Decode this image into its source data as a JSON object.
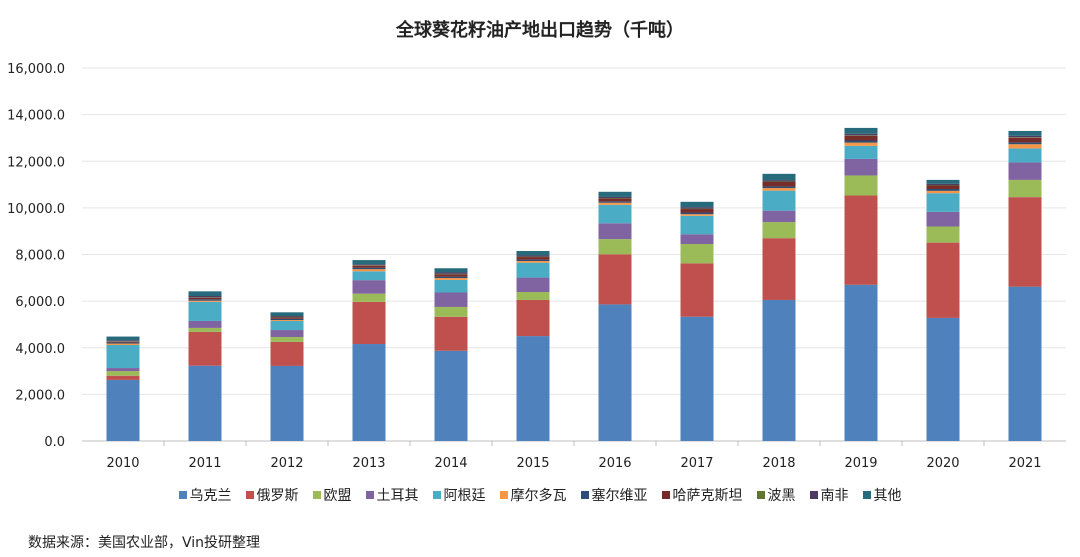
{
  "chart_data": {
    "type": "bar",
    "stacked": true,
    "title": "全球葵花籽油产地出口趋势（千吨）",
    "xlabel": "",
    "ylabel": "",
    "ylim": [
      0,
      16000
    ],
    "yticks": [
      "0.0",
      "2,000.0",
      "4,000.0",
      "6,000.0",
      "8,000.0",
      "10,000.0",
      "12,000.0",
      "14,000.0",
      "16,000.0"
    ],
    "grid": true,
    "legend_position": "bottom",
    "categories": [
      "2010",
      "2011",
      "2012",
      "2013",
      "2014",
      "2015",
      "2016",
      "2017",
      "2018",
      "2019",
      "2020",
      "2021"
    ],
    "series": [
      {
        "name": "乌克兰",
        "color": "#4F81BD",
        "values": [
          2620,
          3230,
          3220,
          4160,
          3870,
          4500,
          5860,
          5330,
          6050,
          6700,
          5280,
          6620
        ]
      },
      {
        "name": "俄罗斯",
        "color": "#C0504D",
        "values": [
          180,
          1450,
          1030,
          1810,
          1460,
          1550,
          2150,
          2290,
          2650,
          3830,
          3230,
          3840
        ]
      },
      {
        "name": "欧盟",
        "color": "#9BBB59",
        "values": [
          200,
          170,
          210,
          350,
          420,
          340,
          650,
          830,
          690,
          860,
          690,
          740
        ]
      },
      {
        "name": "土耳其",
        "color": "#8064A2",
        "values": [
          130,
          300,
          300,
          580,
          620,
          620,
          680,
          420,
          490,
          710,
          630,
          750
        ]
      },
      {
        "name": "阿根廷",
        "color": "#4BACC6",
        "values": [
          990,
          820,
          390,
          380,
          540,
          640,
          790,
          790,
          860,
          560,
          800,
          600
        ]
      },
      {
        "name": "摩尔多瓦",
        "color": "#F79646",
        "values": [
          60,
          50,
          40,
          90,
          80,
          70,
          90,
          70,
          110,
          140,
          100,
          180
        ]
      },
      {
        "name": "塞尔维亚",
        "color": "#2C4D75",
        "values": [
          50,
          60,
          50,
          60,
          60,
          60,
          60,
          70,
          70,
          90,
          80,
          80
        ]
      },
      {
        "name": "哈萨克斯坦",
        "color": "#772C2A",
        "values": [
          30,
          60,
          60,
          90,
          100,
          110,
          120,
          150,
          190,
          200,
          150,
          200
        ]
      },
      {
        "name": "波黑",
        "color": "#5F7530",
        "values": [
          20,
          20,
          20,
          20,
          20,
          20,
          20,
          20,
          20,
          20,
          20,
          20
        ]
      },
      {
        "name": "南非",
        "color": "#4D3B62",
        "values": [
          40,
          60,
          40,
          40,
          60,
          50,
          50,
          60,
          60,
          70,
          50,
          60
        ]
      },
      {
        "name": "其他",
        "color": "#276A7C",
        "values": [
          160,
          200,
          160,
          180,
          180,
          190,
          220,
          230,
          270,
          250,
          170,
          210
        ]
      }
    ]
  },
  "source": "数据来源：美国农业部，Vin投研整理"
}
